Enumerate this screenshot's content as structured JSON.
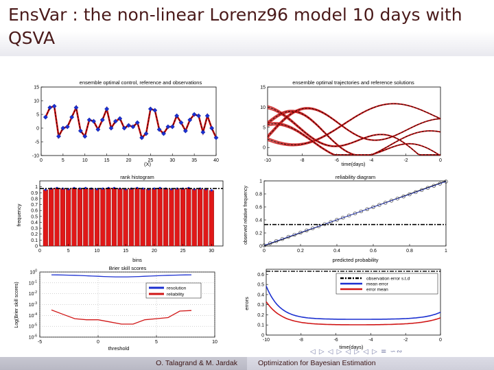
{
  "slide": {
    "title": "EnsVar : the non-linear Lorenz96 model 10 days with QSVA",
    "footer_left": "O. Talagrand & M. Jardak",
    "footer_right": "Optimization for Bayesian Estimation",
    "nav_symbols": "◁ ▷ ◁ ▷ ◁ ▷ ◁ ▷ ≡ ∽∾"
  },
  "chart_data": [
    {
      "type": "line",
      "title": "ensemble optimal control, reference and observations",
      "xlabel": "(X)",
      "ylabel": "",
      "xlim": [
        0,
        40
      ],
      "ylim": [
        -10,
        15
      ],
      "xticks": [
        0,
        5,
        10,
        15,
        20,
        25,
        30,
        35,
        40
      ],
      "yticks": [
        -10,
        -5,
        0,
        5,
        10,
        15
      ],
      "x": [
        1,
        2,
        3,
        4,
        5,
        6,
        7,
        8,
        9,
        10,
        11,
        12,
        13,
        14,
        15,
        16,
        17,
        18,
        19,
        20,
        21,
        22,
        23,
        24,
        25,
        26,
        27,
        28,
        29,
        30,
        31,
        32,
        33,
        34,
        35,
        36,
        37,
        38,
        39,
        40
      ],
      "series": [
        {
          "values": [
            4,
            7.5,
            8,
            -3,
            0,
            0.5,
            4,
            7.5,
            -1,
            -3,
            3,
            2.5,
            -0.5,
            3,
            7,
            0,
            2.5,
            3.5,
            0,
            1,
            0.5,
            2,
            -3.5,
            -2,
            7,
            6.5,
            -0.5,
            -2,
            0.5,
            0.5,
            4.5,
            2,
            -1,
            3,
            5,
            4.5,
            -1.5,
            4.5,
            0,
            -3.5
          ]
        }
      ]
    },
    {
      "type": "line",
      "title": "ensemble optimal trajectories and reference solutions",
      "xlabel": "time(days)",
      "ylabel": "",
      "xlim": [
        -10,
        0
      ],
      "ylim": [
        -2,
        15
      ],
      "xticks": [
        -10,
        -8,
        -6,
        -4,
        -2,
        0
      ],
      "yticks": [
        0,
        5,
        10,
        15
      ]
    },
    {
      "type": "bar",
      "title": "rank histogram",
      "xlabel": "bins",
      "ylabel": "frequency",
      "xlim": [
        0,
        32
      ],
      "ylim": [
        0,
        1.1
      ],
      "xticks": [
        0,
        5,
        10,
        15,
        20,
        25,
        30
      ],
      "yticks": [
        0,
        0.1,
        0.2,
        0.3,
        0.4,
        0.5,
        0.6,
        0.7,
        0.8,
        0.9,
        1
      ],
      "reference_level": 0.97,
      "values": [
        0.95,
        0.97,
        0.98,
        0.97,
        0.96,
        0.98,
        0.97,
        0.98,
        0.97,
        0.96,
        0.97,
        0.98,
        0.98,
        0.97,
        0.96,
        0.97,
        0.98,
        0.97,
        0.96,
        0.97,
        0.98,
        0.97,
        0.96,
        0.97,
        0.97,
        0.98,
        0.96,
        0.97,
        0.96,
        0.94
      ]
    },
    {
      "type": "line",
      "title": "reliability diagram",
      "xlabel": "predicted probability",
      "ylabel": "observed relative frequency",
      "xlim": [
        0,
        1
      ],
      "ylim": [
        0,
        1
      ],
      "xticks": [
        0,
        0.2,
        0.4,
        0.6,
        0.8,
        1
      ],
      "yticks": [
        0,
        0.2,
        0.4,
        0.6,
        0.8,
        1
      ],
      "reference_level": 0.33
    },
    {
      "type": "line",
      "title": "Brier skill scores",
      "xlabel": "threshold",
      "ylabel": "Log(Brier skill scores)",
      "xlim": [
        -5,
        10
      ],
      "yticks": [
        "10^0",
        "10^-1",
        "10^-2",
        "10^-3",
        "10^-4",
        "10^-5",
        "10^-6"
      ],
      "xticks": [
        -5,
        0,
        5,
        10
      ],
      "legend": [
        "resolution",
        "reliability"
      ],
      "legend_position": "top-right"
    },
    {
      "type": "line",
      "title": "",
      "xlabel": "time(days)",
      "ylabel": "errors",
      "xlim": [
        -10,
        0
      ],
      "ylim": [
        0,
        0.6
      ],
      "xticks": [
        -10,
        -8,
        -6,
        -4,
        -2,
        0
      ],
      "yticks": [
        0,
        0.1,
        0.2,
        0.3,
        0.4,
        0.5,
        0.6
      ],
      "legend": [
        "observation error s.t.d",
        "mean error",
        "error mean"
      ],
      "legend_position": "top-right"
    }
  ]
}
